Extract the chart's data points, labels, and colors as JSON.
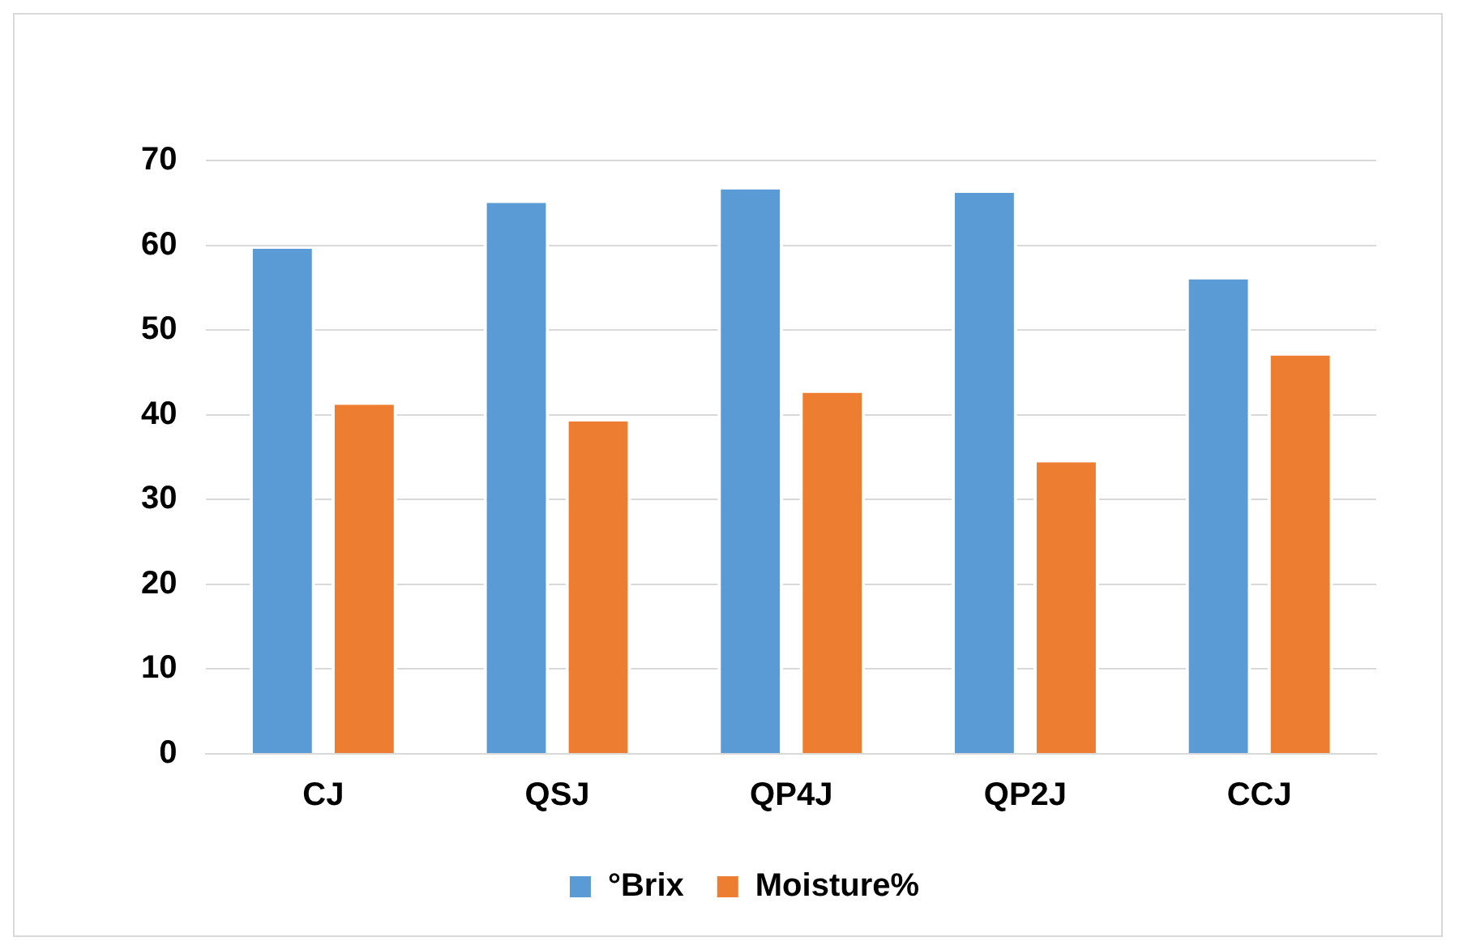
{
  "chart_data": {
    "type": "bar",
    "categories": [
      "CJ",
      "QSJ",
      "QP4J",
      "QP2J",
      "CCJ"
    ],
    "series": [
      {
        "name": "°Brix",
        "color": "#5b9bd5",
        "values": [
          59.6,
          65,
          66.6,
          66.2,
          56
        ]
      },
      {
        "name": "Moisture%",
        "color": "#ed7d31",
        "values": [
          41.2,
          39.2,
          42.6,
          34.4,
          47
        ]
      }
    ],
    "ylim": [
      0,
      70
    ],
    "yticks": [
      0,
      10,
      20,
      30,
      40,
      50,
      60,
      70
    ],
    "grid": "y",
    "legend": "bottom"
  }
}
